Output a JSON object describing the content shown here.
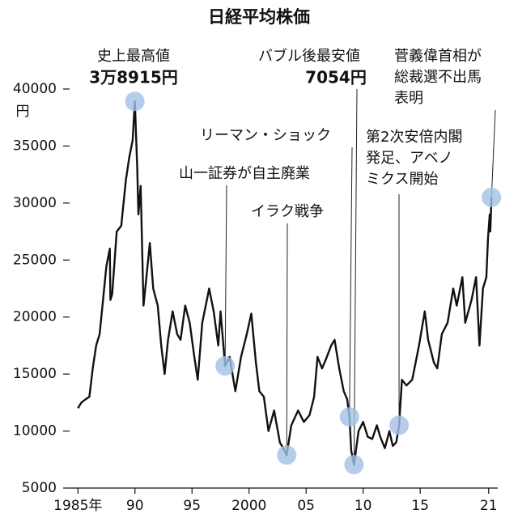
{
  "chart_data": {
    "type": "line",
    "title": "日経平均株価",
    "y_unit": "円",
    "xlim": [
      1984.2,
      2021.8
    ],
    "ylim": [
      5000,
      40000
    ],
    "xticks": [
      {
        "value": 1985,
        "label": "1985年"
      },
      {
        "value": 1990,
        "label": "90"
      },
      {
        "value": 1995,
        "label": "95"
      },
      2000,
      {
        "value": 2005,
        "label": "05"
      },
      {
        "value": 2010,
        "label": "10"
      },
      {
        "value": 2015,
        "label": "15"
      },
      {
        "value": 2021,
        "label": "21"
      }
    ],
    "yticks": [
      5000,
      10000,
      15000,
      20000,
      25000,
      30000,
      35000,
      40000
    ],
    "color": "#111111",
    "highlight_color": "#a3c1e6",
    "x": [
      1985.0,
      1985.3,
      1985.7,
      1986.0,
      1986.3,
      1986.6,
      1986.9,
      1987.2,
      1987.5,
      1987.8,
      1987.85,
      1988.0,
      1988.4,
      1988.8,
      1989.2,
      1989.5,
      1989.8,
      1989.99,
      1990.2,
      1990.3,
      1990.5,
      1990.75,
      1991.0,
      1991.3,
      1991.6,
      1992.0,
      1992.3,
      1992.6,
      1992.9,
      1993.3,
      1993.7,
      1994.0,
      1994.4,
      1994.8,
      1995.2,
      1995.5,
      1995.9,
      1996.3,
      1996.5,
      1996.9,
      1997.3,
      1997.5,
      1997.9,
      1998.3,
      1998.8,
      1999.3,
      1999.8,
      2000.2,
      2000.6,
      2000.9,
      2001.3,
      2001.7,
      2002.2,
      2002.7,
      2003.0,
      2003.3,
      2003.7,
      2004.3,
      2004.8,
      2005.3,
      2005.7,
      2006.0,
      2006.4,
      2006.7,
      2007.2,
      2007.5,
      2007.9,
      2008.3,
      2008.6,
      2008.8,
      2008.95,
      2009.2,
      2009.6,
      2010.0,
      2010.4,
      2010.8,
      2011.2,
      2011.5,
      2011.9,
      2012.3,
      2012.6,
      2012.9,
      2013.15,
      2013.4,
      2013.8,
      2014.3,
      2014.9,
      2015.4,
      2015.7,
      2016.2,
      2016.5,
      2016.9,
      2017.4,
      2017.9,
      2018.2,
      2018.7,
      2018.95,
      2019.5,
      2019.9,
      2020.2,
      2020.5,
      2020.8,
      2020.95,
      2021.1,
      2021.15,
      2021.25
    ],
    "values": [
      12000,
      12500,
      12800,
      13000,
      15500,
      17500,
      18500,
      21500,
      24500,
      26000,
      21500,
      22000,
      27500,
      28000,
      32000,
      34000,
      35500,
      38915,
      33000,
      29000,
      31500,
      21000,
      23500,
      26500,
      22500,
      21000,
      17500,
      15000,
      18000,
      20500,
      18500,
      18000,
      21000,
      19500,
      16500,
      14500,
      19500,
      21500,
      22500,
      20500,
      17500,
      20500,
      15710,
      16500,
      13500,
      16500,
      18500,
      20300,
      16000,
      13500,
      13000,
      10000,
      11800,
      9000,
      8500,
      7900,
      10500,
      11800,
      10800,
      11400,
      13000,
      16500,
      15500,
      16200,
      17500,
      18000,
      15500,
      13500,
      12800,
      11236,
      8300,
      7054,
      10000,
      10800,
      9500,
      9300,
      10500,
      9500,
      8500,
      10000,
      8700,
      9000,
      10500,
      14500,
      14000,
      14500,
      17500,
      20500,
      18000,
      16000,
      15500,
      18500,
      19500,
      22500,
      21000,
      23500,
      19500,
      21500,
      23500,
      17500,
      22500,
      23500,
      27000,
      29000,
      27500,
      30500
    ],
    "annotations": [
      {
        "text": [
          "史上最高値"
        ],
        "value_label": "3万8915円",
        "x": 1989.99,
        "y": 38915
      },
      {
        "text": [
          "バブル後最安値"
        ],
        "value_label": "7054円",
        "x": 2009.2,
        "y": 7054
      },
      {
        "text": [
          "菅義偉首相が",
          "総裁選不出馬",
          "表明"
        ],
        "x": 2021.25,
        "y": 30500
      },
      {
        "text": [
          "リーマン・ショック"
        ],
        "x": 2008.8,
        "y": 11236
      },
      {
        "text": [
          "山一証券が自主廃業"
        ],
        "x": 1997.9,
        "y": 15710
      },
      {
        "text": [
          "イラク戦争"
        ],
        "x": 2003.3,
        "y": 7900
      },
      {
        "text": [
          "第2次安倍内閣",
          "発足、アベノ",
          "ミクス開始"
        ],
        "x": 2013.15,
        "y": 10500
      }
    ]
  }
}
